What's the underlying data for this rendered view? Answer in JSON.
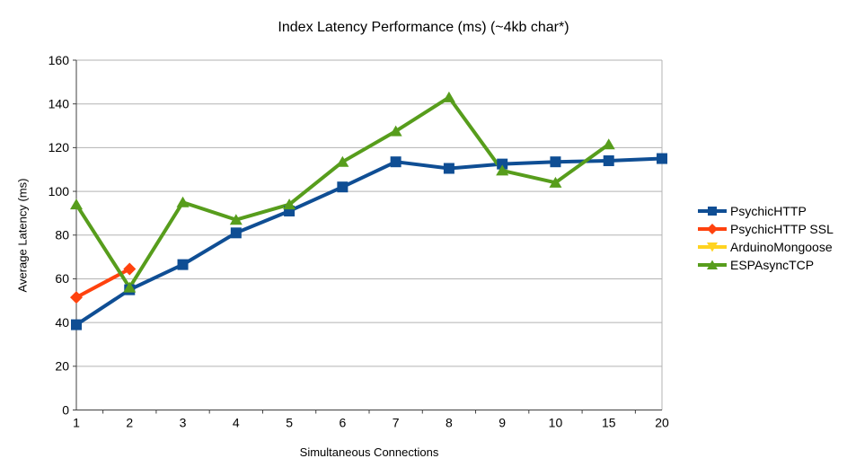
{
  "chart_data": {
    "type": "line",
    "title": "Index Latency Performance (ms) (~4kb char*)",
    "xlabel": "Simultaneous Connections",
    "ylabel": "Average Latency (ms)",
    "ylim": [
      0,
      160
    ],
    "ytick_step": 20,
    "grid": "horizontal",
    "legend_position": "right",
    "categories": [
      "1",
      "2",
      "3",
      "4",
      "5",
      "6",
      "7",
      "8",
      "9",
      "10",
      "15",
      "20"
    ],
    "series": [
      {
        "name": "PsychicHTTP",
        "color": "#0F4E94",
        "marker": "square",
        "values": [
          39,
          55,
          66.5,
          81,
          91,
          102,
          113.5,
          110.5,
          112.5,
          113.5,
          114,
          115
        ]
      },
      {
        "name": "PsychicHTTP SSL",
        "color": "#FF420E",
        "marker": "diamond",
        "values": [
          51.5,
          64.5,
          null,
          null,
          null,
          null,
          null,
          null,
          null,
          null,
          null,
          null
        ]
      },
      {
        "name": "ArduinoMongoose",
        "color": "#FFD320",
        "marker": "triangle-down",
        "values": [
          null,
          null,
          null,
          null,
          null,
          null,
          null,
          null,
          null,
          null,
          null,
          null
        ]
      },
      {
        "name": "ESPAsyncTCP",
        "color": "#579D1C",
        "marker": "triangle-up",
        "values": [
          94,
          56,
          95,
          87,
          94,
          113.5,
          127.5,
          143,
          109.5,
          104,
          121.5,
          null
        ]
      }
    ],
    "colors": {
      "gridline": "#B3B3B3",
      "axis": "#404040",
      "text": "#000000",
      "background": "#FFFFFF"
    }
  }
}
